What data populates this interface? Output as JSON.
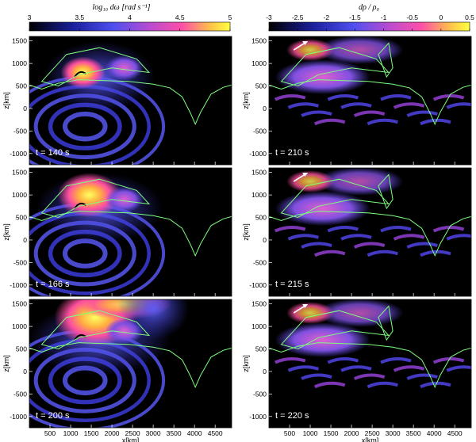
{
  "figure": {
    "left_colorbar": {
      "label": "log₁₀ dω    [rad s⁻¹]",
      "ticks": [
        "3",
        "3.5",
        "4",
        "4.5",
        "5"
      ],
      "range": [
        3,
        5
      ]
    },
    "right_colorbar": {
      "label": "dρ / ρ₀",
      "ticks": [
        "-3",
        "-2.5",
        "-2",
        "-1.5",
        "-1",
        "-0.5",
        "0",
        "0.5"
      ],
      "range": [
        -3,
        0.5
      ]
    },
    "panels": [
      {
        "time_label": "t = 140 s"
      },
      {
        "time_label": "t = 210 s"
      },
      {
        "time_label": "t = 166 s"
      },
      {
        "time_label": "t = 215 s"
      },
      {
        "time_label": "t = 200 s"
      },
      {
        "time_label": "t = 220 s"
      }
    ],
    "axes": {
      "xlabel": "x[km]",
      "ylabel": "z[km]",
      "x_ticks": [
        "500",
        "1000",
        "1500",
        "2000",
        "2500",
        "3000",
        "3500",
        "4000",
        "4500"
      ],
      "y_ticks": [
        "1500",
        "1000",
        "500",
        "0",
        "-500",
        "-1000"
      ]
    }
  },
  "chart_data": [
    {
      "type": "heatmap",
      "title": "t = 140 s",
      "xlabel": "x[km]",
      "ylabel": "z[km]",
      "xlim": [
        0,
        4900
      ],
      "ylim": [
        -1250,
        1600
      ],
      "colorbar": "log₁₀ dω",
      "crange": [
        3,
        5
      ]
    },
    {
      "type": "heatmap",
      "title": "t = 210 s",
      "xlabel": "x[km]",
      "ylabel": "z[km]",
      "xlim": [
        0,
        4900
      ],
      "ylim": [
        -1250,
        1600
      ],
      "colorbar": "dρ / ρ₀",
      "crange": [
        -3,
        0.5
      ]
    },
    {
      "type": "heatmap",
      "title": "t = 166 s",
      "xlabel": "x[km]",
      "ylabel": "z[km]",
      "xlim": [
        0,
        4900
      ],
      "ylim": [
        -1250,
        1600
      ],
      "colorbar": "log₁₀ dω",
      "crange": [
        3,
        5
      ]
    },
    {
      "type": "heatmap",
      "title": "t = 215 s",
      "xlabel": "x[km]",
      "ylabel": "z[km]",
      "xlim": [
        0,
        4900
      ],
      "ylim": [
        -1250,
        1600
      ],
      "colorbar": "dρ / ρ₀",
      "crange": [
        -3,
        0.5
      ]
    },
    {
      "type": "heatmap",
      "title": "t = 200 s",
      "xlabel": "x[km]",
      "ylabel": "z[km]",
      "xlim": [
        0,
        4900
      ],
      "ylim": [
        -1250,
        1600
      ],
      "colorbar": "log₁₀ dω",
      "crange": [
        3,
        5
      ]
    },
    {
      "type": "heatmap",
      "title": "t = 220 s",
      "xlabel": "x[km]",
      "ylabel": "z[km]",
      "xlim": [
        0,
        4900
      ],
      "ylim": [
        -1250,
        1600
      ],
      "colorbar": "dρ / ρ₀",
      "crange": [
        -3,
        0.5
      ]
    }
  ],
  "colors": {
    "contour": "#7dff7d",
    "background": "#000000",
    "arrow": "#ffffff"
  }
}
